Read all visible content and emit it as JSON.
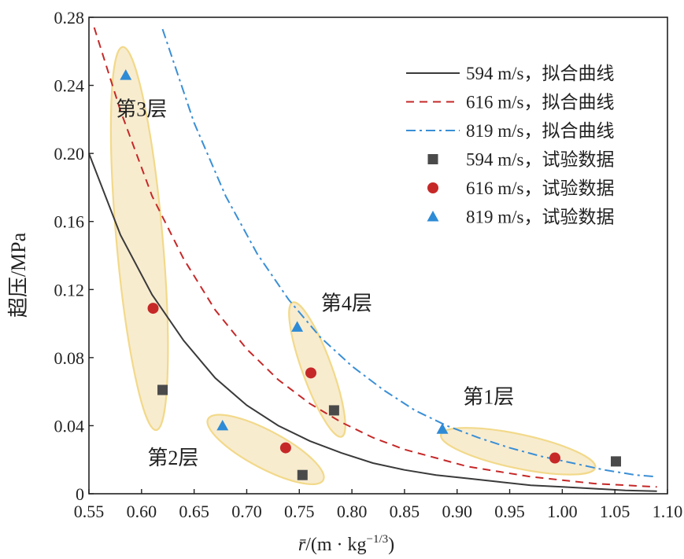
{
  "chart_data": {
    "type": "scatter",
    "xlabel_var": "r̄",
    "xlabel_unit": "/(m · kg",
    "xlabel_exp": "−1/3",
    "xlabel_close": ")",
    "ylabel": "超压/MPa",
    "xlim": [
      0.55,
      1.1
    ],
    "ylim": [
      0,
      0.28
    ],
    "xticks": [
      "0.55",
      "0.60",
      "0.65",
      "0.70",
      "0.75",
      "0.80",
      "0.85",
      "0.90",
      "0.95",
      "1.00",
      "1.05",
      "1.10"
    ],
    "yticks": [
      "0",
      "0.04",
      "0.08",
      "0.12",
      "0.16",
      "0.20",
      "0.24",
      "0.28"
    ],
    "grid": false,
    "legend_position": "top-right",
    "fit_curves": [
      {
        "name": "594 m/s，拟合曲线",
        "color": "#3a3a3a",
        "dash": "solid",
        "x": [
          0.55,
          0.58,
          0.61,
          0.64,
          0.67,
          0.7,
          0.73,
          0.76,
          0.79,
          0.82,
          0.85,
          0.88,
          0.91,
          0.94,
          0.97,
          1.0,
          1.03,
          1.06,
          1.09
        ],
        "y": [
          0.2,
          0.152,
          0.117,
          0.09,
          0.068,
          0.052,
          0.04,
          0.031,
          0.024,
          0.018,
          0.014,
          0.011,
          0.009,
          0.007,
          0.005,
          0.004,
          0.003,
          0.002,
          0.0015
        ]
      },
      {
        "name": "616 m/s，拟合曲线",
        "color": "#c62828",
        "dash": "dashed",
        "x": [
          0.555,
          0.58,
          0.61,
          0.64,
          0.67,
          0.7,
          0.73,
          0.76,
          0.79,
          0.82,
          0.85,
          0.88,
          0.91,
          0.94,
          0.97,
          1.0,
          1.03,
          1.06,
          1.09
        ],
        "y": [
          0.274,
          0.225,
          0.175,
          0.138,
          0.108,
          0.085,
          0.067,
          0.053,
          0.042,
          0.033,
          0.026,
          0.021,
          0.016,
          0.013,
          0.01,
          0.008,
          0.006,
          0.005,
          0.004
        ]
      },
      {
        "name": "819 m/s，拟合曲线",
        "color": "#3a8fd6",
        "dash": "dashdot",
        "x": [
          0.62,
          0.65,
          0.68,
          0.71,
          0.74,
          0.77,
          0.8,
          0.83,
          0.86,
          0.89,
          0.92,
          0.95,
          0.98,
          1.01,
          1.04,
          1.07,
          1.09
        ],
        "y": [
          0.273,
          0.218,
          0.175,
          0.141,
          0.114,
          0.092,
          0.075,
          0.061,
          0.049,
          0.04,
          0.033,
          0.027,
          0.022,
          0.018,
          0.014,
          0.011,
          0.01
        ]
      }
    ],
    "data_series": [
      {
        "name": "594 m/s，试验数据",
        "marker": "square",
        "color": "#4a4a4a",
        "x": [
          0.62,
          0.753,
          0.783,
          1.051
        ],
        "y": [
          0.061,
          0.011,
          0.049,
          0.019
        ]
      },
      {
        "name": "616 m/s，试验数据",
        "marker": "circle",
        "color": "#c62828",
        "x": [
          0.611,
          0.737,
          0.761,
          0.993
        ],
        "y": [
          0.109,
          0.027,
          0.071,
          0.021
        ]
      },
      {
        "name": "819 m/s，试验数据",
        "marker": "triangle",
        "color": "#2e8bd6",
        "x": [
          0.585,
          0.677,
          0.748,
          0.886
        ],
        "y": [
          0.246,
          0.04,
          0.098,
          0.038
        ]
      }
    ],
    "layers": [
      {
        "label": "第1层",
        "cx": 0.958,
        "cy": 0.025,
        "rx_data": 0.075,
        "ry_data": 0.01,
        "angle": 12,
        "label_x": 0.93,
        "label_y": 0.053
      },
      {
        "label": "第2层",
        "cx": 0.718,
        "cy": 0.026,
        "rx_data": 0.062,
        "ry_data": 0.011,
        "angle": 28,
        "label_x": 0.63,
        "label_y": 0.017
      },
      {
        "label": "第3层",
        "cx": 0.598,
        "cy": 0.15,
        "rx_data": 0.022,
        "ry_data": 0.113,
        "angle": -5,
        "label_x": 0.6,
        "label_y": 0.222
      },
      {
        "label": "第4层",
        "cx": 0.767,
        "cy": 0.073,
        "rx_data": 0.014,
        "ry_data": 0.042,
        "angle": -20,
        "label_x": 0.795,
        "label_y": 0.108
      }
    ],
    "ellipse_fill": "#f8eccf",
    "ellipse_stroke": "#f2d98a"
  }
}
